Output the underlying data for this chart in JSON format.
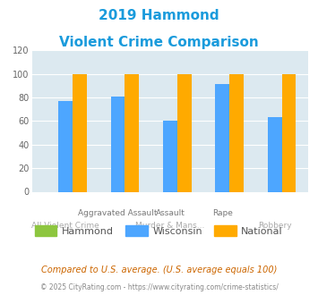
{
  "title_line1": "2019 Hammond",
  "title_line2": "Violent Crime Comparison",
  "title_color": "#1a9bdc",
  "categories": [
    "All Violent Crime",
    "Aggravated Assault",
    "Murder & Mans...",
    "Rape",
    "Robbery"
  ],
  "cat_top": [
    "",
    "Aggravated Assault",
    "Assault",
    "Rape",
    ""
  ],
  "cat_bot": [
    "All Violent Crime",
    "",
    "Murder & Mans...",
    "",
    "Robbery"
  ],
  "hammond_values": [
    0,
    0,
    0,
    0,
    0
  ],
  "wisconsin_values": [
    77,
    81,
    60,
    91,
    63
  ],
  "national_values": [
    100,
    100,
    100,
    100,
    100
  ],
  "hammond_color": "#8dc63f",
  "wisconsin_color": "#4da6ff",
  "national_color": "#ffaa00",
  "ylim": [
    0,
    120
  ],
  "yticks": [
    0,
    20,
    40,
    60,
    80,
    100,
    120
  ],
  "bg_color": "#dce9f0",
  "legend_labels": [
    "Hammond",
    "Wisconsin",
    "National"
  ],
  "footnote1": "Compared to U.S. average. (U.S. average equals 100)",
  "footnote2": "© 2025 CityRating.com - https://www.cityrating.com/crime-statistics/",
  "footnote1_color": "#cc6600",
  "footnote2_color": "#888888"
}
